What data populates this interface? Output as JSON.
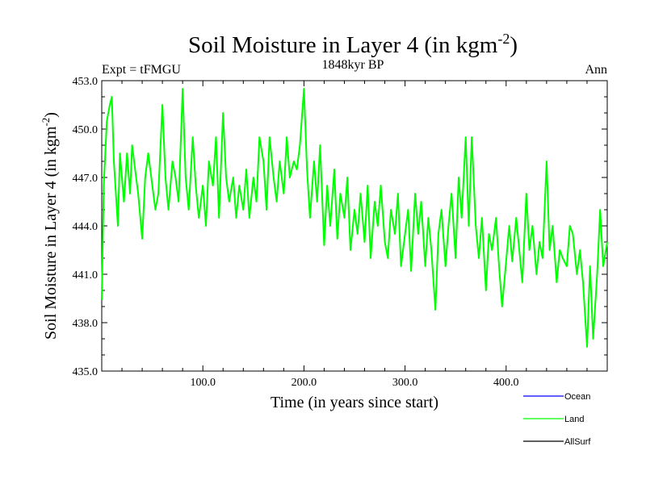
{
  "chart_data": {
    "type": "line",
    "title_main": "Soil Moisture in Layer 4 (in kgm",
    "title_sup": "-2",
    "title_close": ")",
    "subtitle_left": "Expt = tFMGU",
    "subtitle_center": "1848kyr BP",
    "subtitle_right": "Ann",
    "ylabel_main": "Soil Moisture in Layer 4 (in kgm",
    "ylabel_sup": "-2",
    "ylabel_close": ")",
    "xlabel": "Time (in years since start)",
    "xlim": [
      0,
      500
    ],
    "ylim": [
      435,
      453
    ],
    "xticks": [
      100,
      200,
      300,
      400
    ],
    "xtick_labels": [
      "100.0",
      "200.0",
      "300.0",
      "400.0"
    ],
    "yticks": [
      435,
      438,
      441,
      444,
      447,
      450,
      453
    ],
    "ytick_labels": [
      "435.0",
      "438.0",
      "441.0",
      "444.0",
      "447.0",
      "450.0",
      "453.0"
    ],
    "series": [
      {
        "name": "Ocean",
        "color": "#0000ff",
        "values": []
      },
      {
        "name": "Land",
        "color": "#00ff00",
        "x": [
          0,
          2,
          5,
          8,
          10,
          12,
          14,
          16,
          18,
          20,
          22,
          25,
          28,
          30,
          33,
          36,
          40,
          43,
          46,
          50,
          53,
          56,
          60,
          63,
          66,
          70,
          73,
          76,
          80,
          83,
          86,
          90,
          93,
          96,
          100,
          103,
          106,
          110,
          113,
          116,
          120,
          123,
          126,
          130,
          133,
          136,
          140,
          143,
          146,
          150,
          153,
          156,
          160,
          163,
          166,
          170,
          173,
          176,
          180,
          183,
          186,
          190,
          193,
          196,
          200,
          203,
          206,
          210,
          213,
          216,
          220,
          223,
          226,
          230,
          233,
          236,
          240,
          243,
          246,
          250,
          253,
          256,
          260,
          263,
          266,
          270,
          273,
          276,
          280,
          283,
          286,
          290,
          293,
          296,
          300,
          303,
          306,
          310,
          313,
          316,
          320,
          323,
          326,
          330,
          333,
          336,
          340,
          343,
          346,
          350,
          353,
          356,
          360,
          363,
          366,
          370,
          373,
          376,
          380,
          383,
          386,
          390,
          393,
          396,
          400,
          403,
          406,
          410,
          413,
          416,
          420,
          423,
          426,
          430,
          433,
          436,
          440,
          443,
          446,
          450,
          453,
          456,
          460,
          463,
          466,
          470,
          473,
          476,
          480,
          483,
          486,
          490,
          493,
          496,
          500
        ],
        "values": [
          439.4,
          446.5,
          450.5,
          451.5,
          452.0,
          448.0,
          446.0,
          444.0,
          448.5,
          447.0,
          445.5,
          448.5,
          446.0,
          449.0,
          447.5,
          446.0,
          443.2,
          447.0,
          448.5,
          446.5,
          445.0,
          446.0,
          451.5,
          447.0,
          445.0,
          448.0,
          447.0,
          445.5,
          452.5,
          447.0,
          445.0,
          449.5,
          446.5,
          444.5,
          446.5,
          444.0,
          448.0,
          446.5,
          449.5,
          444.5,
          451.0,
          447.0,
          445.5,
          447.0,
          444.5,
          446.5,
          445.0,
          447.5,
          444.5,
          447.0,
          445.5,
          449.5,
          448.0,
          445.0,
          449.5,
          447.0,
          445.5,
          448.0,
          446.0,
          449.5,
          447.0,
          448.0,
          447.5,
          449.0,
          452.5,
          447.5,
          444.5,
          448.0,
          445.5,
          449.0,
          442.8,
          446.5,
          444.0,
          447.5,
          443.2,
          446.0,
          444.5,
          447.0,
          442.5,
          445.0,
          443.5,
          446.0,
          443.0,
          446.5,
          442.0,
          445.5,
          444.0,
          446.5,
          443.0,
          442.0,
          445.0,
          443.5,
          446.0,
          441.5,
          443.5,
          445.0,
          441.2,
          446.0,
          443.5,
          445.5,
          441.5,
          444.5,
          442.5,
          438.8,
          443.5,
          445.0,
          441.5,
          444.0,
          446.0,
          442.0,
          447.0,
          444.5,
          449.5,
          444.0,
          449.5,
          444.0,
          442.0,
          444.5,
          440.0,
          443.5,
          442.5,
          444.5,
          441.5,
          439.0,
          441.8,
          444.0,
          441.8,
          444.5,
          442.5,
          440.5,
          446.0,
          442.5,
          444.0,
          441.0,
          443.0,
          442.0,
          448.0,
          442.5,
          444.0,
          440.5,
          442.5,
          442.0,
          441.5,
          444.0,
          443.5,
          441.0,
          442.5,
          440.5,
          436.5,
          441.5,
          437.0,
          441.0,
          445.0,
          441.5,
          443.0
        ]
      },
      {
        "name": "AllSurf",
        "color": "#000000",
        "values": []
      }
    ],
    "legend_position": "bottom-right",
    "grid": false
  }
}
